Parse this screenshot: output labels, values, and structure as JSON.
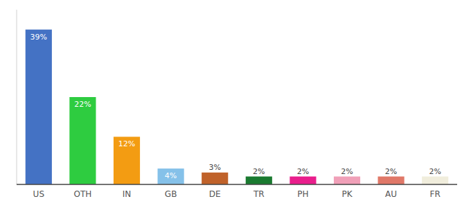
{
  "chart_data": {
    "type": "bar",
    "categories": [
      "US",
      "OTH",
      "IN",
      "GB",
      "DE",
      "TR",
      "PH",
      "PK",
      "AU",
      "FR"
    ],
    "values": [
      39,
      22,
      12,
      4,
      3,
      2,
      2,
      2,
      2,
      2
    ],
    "value_labels": [
      "39%",
      "22%",
      "12%",
      "4%",
      "3%",
      "2%",
      "2%",
      "2%",
      "2%",
      "2%"
    ],
    "colors": [
      "#4472c4",
      "#2ecc40",
      "#f39c12",
      "#85c1e9",
      "#c0622a",
      "#1a7a30",
      "#e91e8c",
      "#f0a0b8",
      "#e07868",
      "#f0eddc"
    ],
    "ylim": [
      0,
      44
    ],
    "grid": false,
    "data_labels": true,
    "tick_labels": "x"
  }
}
